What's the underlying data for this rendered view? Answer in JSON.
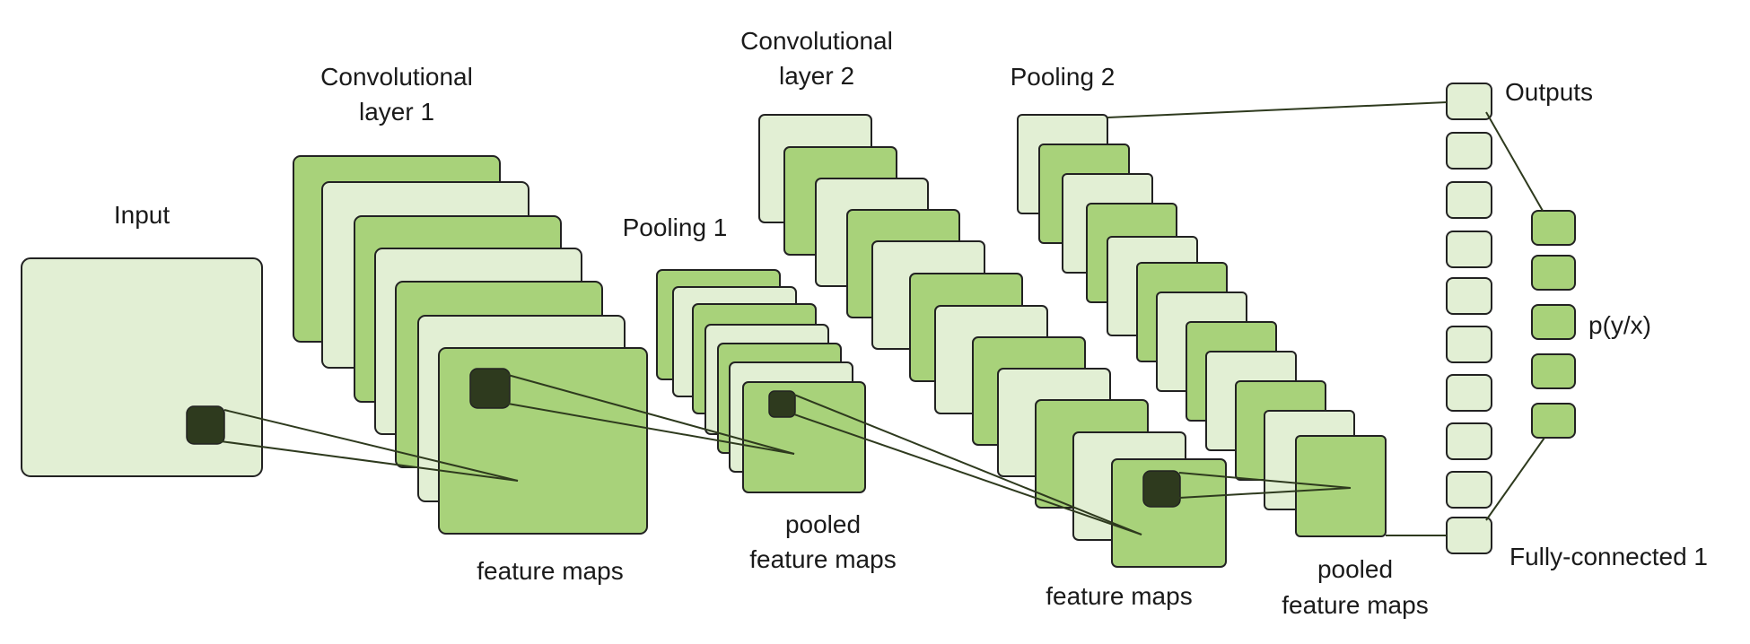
{
  "labels": {
    "input": "Input",
    "conv1_line1": "Convolutional",
    "conv1_line2": "layer 1",
    "pool1": "Pooling 1",
    "conv2_line1": "Convolutional",
    "conv2_line2": "layer 2",
    "pool2": "Pooling 2",
    "outputs": "Outputs",
    "feature_maps_1": "feature maps",
    "pooled_1_line1": "pooled",
    "pooled_1_line2": "feature maps",
    "feature_maps_2": "feature maps",
    "pooled_2_line1": "pooled",
    "pooled_2_line2": "feature maps",
    "fully_connected": "Fully-connected 1",
    "probability": "p(y/x)"
  },
  "colors": {
    "light_green": "#e2efd4",
    "mid_green": "#a8d27a",
    "kernel_dark": "#2e3a1e",
    "stroke": "#222222"
  }
}
